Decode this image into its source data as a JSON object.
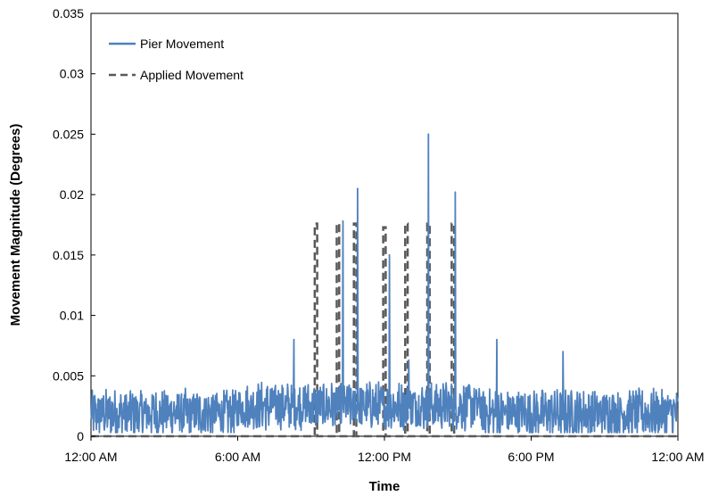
{
  "chart_data": {
    "type": "line",
    "title": "",
    "xlabel": "Time",
    "ylabel": "Movement Magnitude (Degrees)",
    "xlim": [
      0,
      24
    ],
    "ylim": [
      0,
      0.035
    ],
    "x_ticks": [
      {
        "x": 0,
        "label": "12:00 AM"
      },
      {
        "x": 6,
        "label": "6:00 AM"
      },
      {
        "x": 12,
        "label": "12:00 PM"
      },
      {
        "x": 18,
        "label": "6:00 PM"
      },
      {
        "x": 24,
        "label": "12:00 AM"
      }
    ],
    "y_ticks": [
      {
        "y": 0,
        "label": "0"
      },
      {
        "y": 0.005,
        "label": "0.005"
      },
      {
        "y": 0.01,
        "label": "0.01"
      },
      {
        "y": 0.015,
        "label": "0.015"
      },
      {
        "y": 0.02,
        "label": "0.02"
      },
      {
        "y": 0.025,
        "label": "0.025"
      },
      {
        "y": 0.03,
        "label": "0.03"
      },
      {
        "y": 0.035,
        "label": "0.035"
      }
    ],
    "legend_position": "top-left",
    "grid": false,
    "series": [
      {
        "name": "Pier Movement",
        "color": "#4f81bd",
        "style": "solid",
        "baseline_range": [
          0.0005,
          0.0045
        ],
        "peaks": [
          {
            "x": 8.3,
            "y": 0.008
          },
          {
            "x": 10.3,
            "y": 0.0178
          },
          {
            "x": 10.9,
            "y": 0.0205
          },
          {
            "x": 12.2,
            "y": 0.015
          },
          {
            "x": 13.0,
            "y": 0.0063
          },
          {
            "x": 13.8,
            "y": 0.025
          },
          {
            "x": 14.9,
            "y": 0.0202
          },
          {
            "x": 16.6,
            "y": 0.008
          },
          {
            "x": 19.3,
            "y": 0.007
          }
        ]
      },
      {
        "name": "Applied Movement",
        "color": "#595959",
        "style": "dashed",
        "pulses": [
          {
            "x": 9.2,
            "y": 0.0176
          },
          {
            "x": 10.1,
            "y": 0.0176
          },
          {
            "x": 10.8,
            "y": 0.0176
          },
          {
            "x": 12.0,
            "y": 0.0173
          },
          {
            "x": 12.9,
            "y": 0.0176
          },
          {
            "x": 13.8,
            "y": 0.0176
          },
          {
            "x": 14.8,
            "y": 0.0176
          }
        ]
      }
    ]
  }
}
